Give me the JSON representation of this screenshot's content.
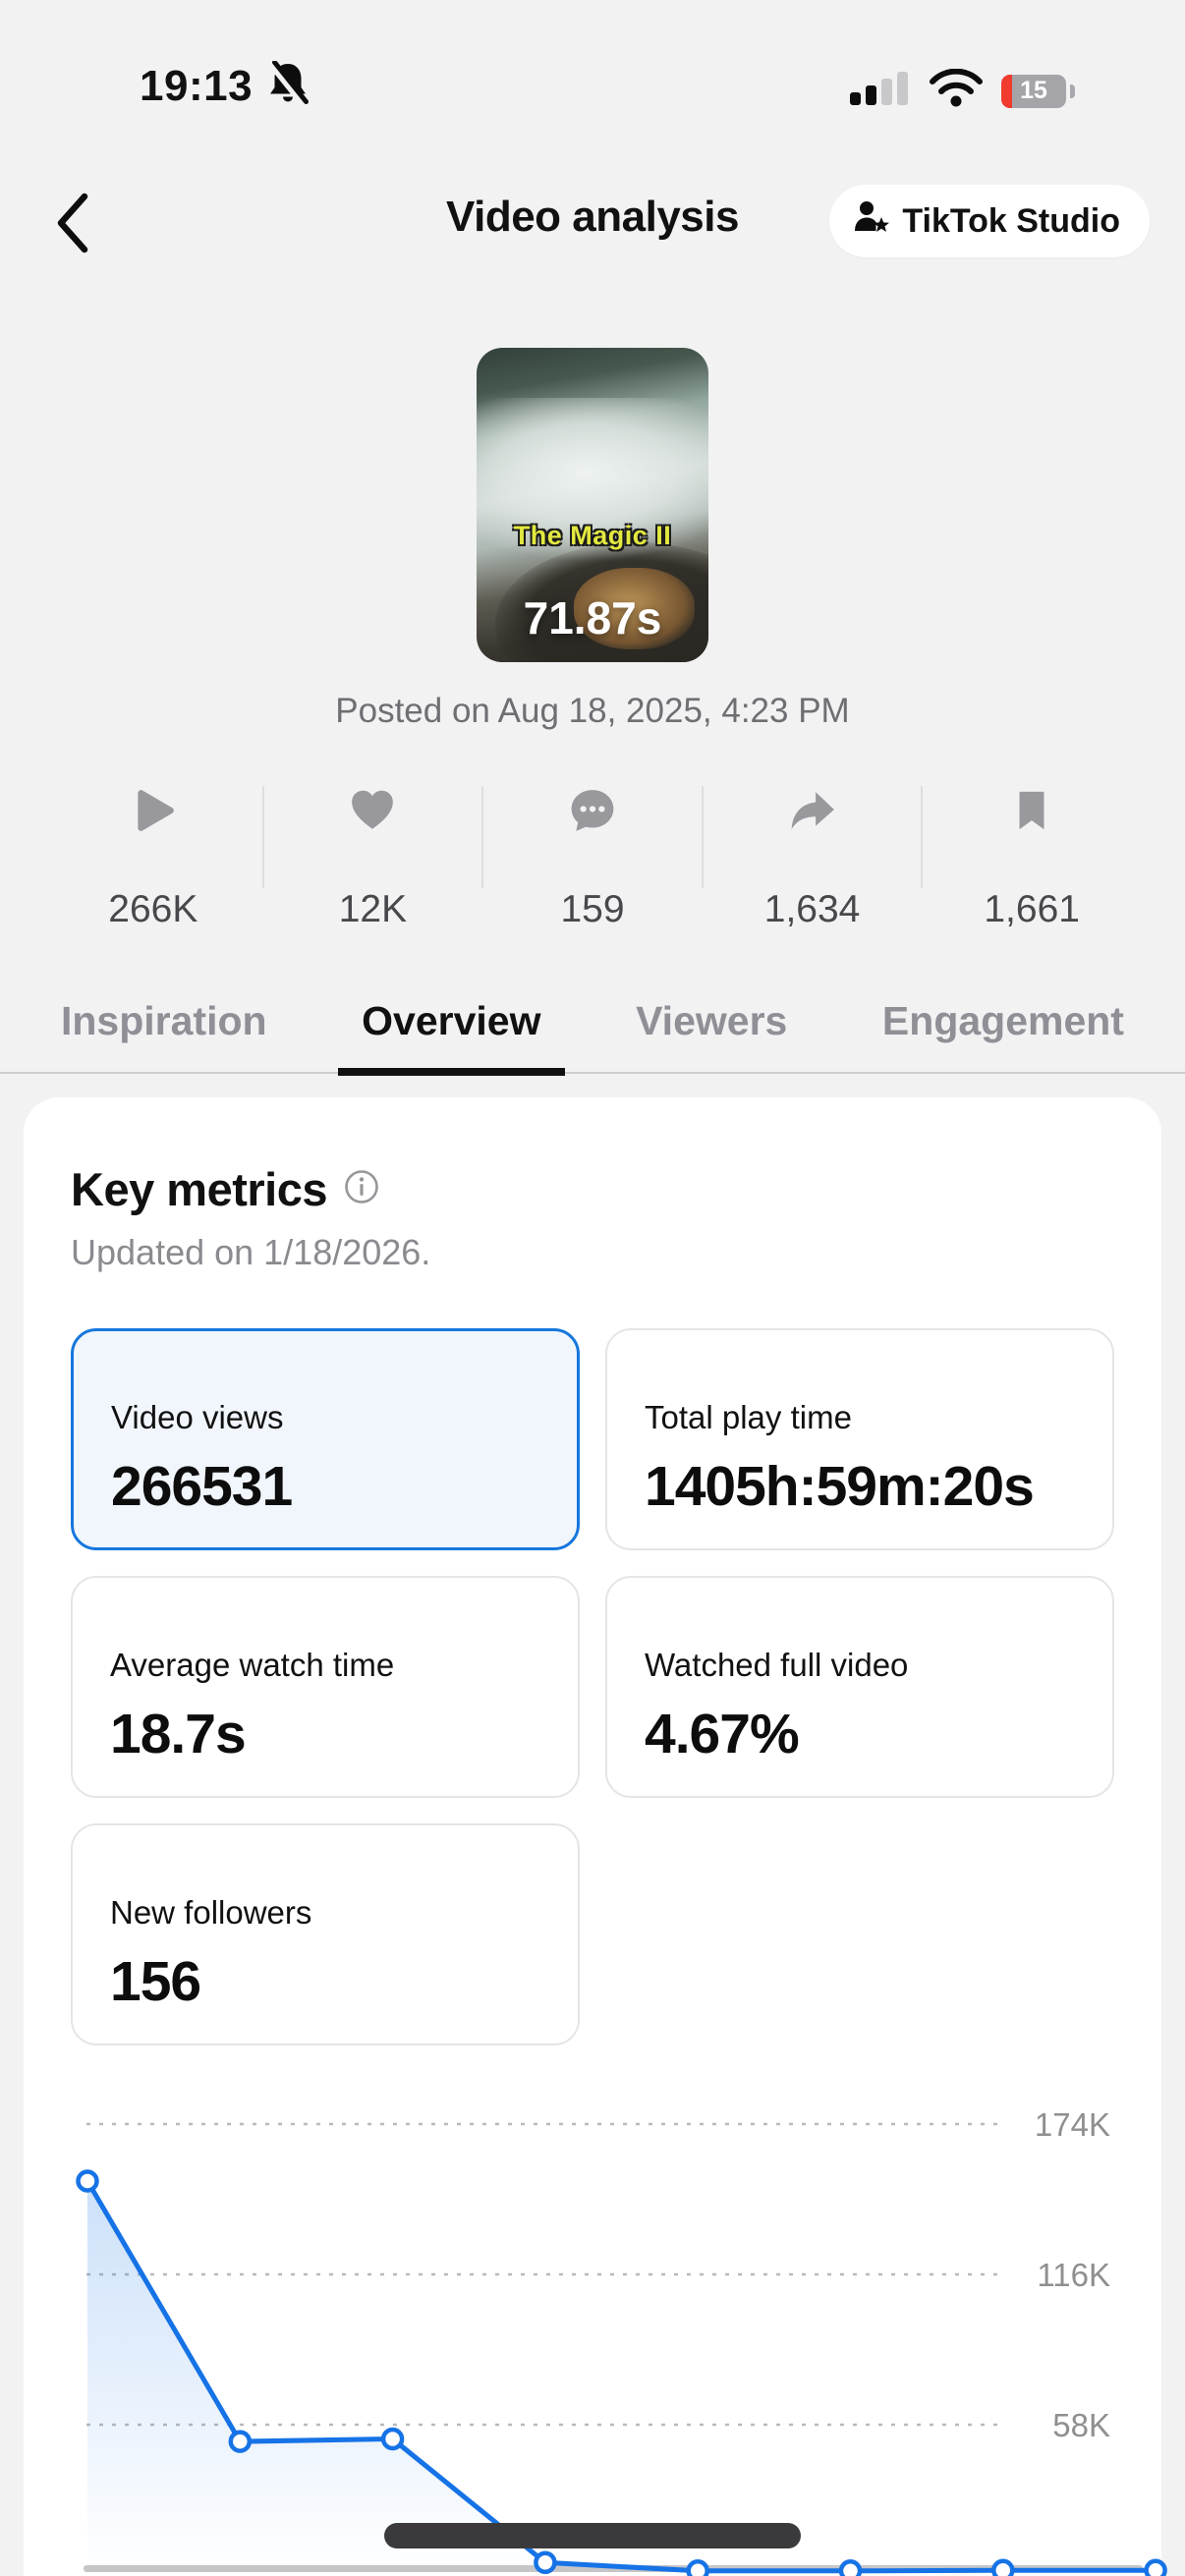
{
  "status_bar": {
    "time": "19:13",
    "battery_level": "15"
  },
  "header": {
    "title": "Video analysis",
    "studio_button_label": "TikTok Studio"
  },
  "video": {
    "overlay_caption": "The Magic II",
    "duration_label": "71.87s",
    "posted_text": "Posted on Aug 18, 2025, 4:23 PM"
  },
  "stats": [
    {
      "icon": "play",
      "value": "266K"
    },
    {
      "icon": "heart",
      "value": "12K"
    },
    {
      "icon": "comment",
      "value": "159"
    },
    {
      "icon": "share",
      "value": "1,634"
    },
    {
      "icon": "bookmark",
      "value": "1,661"
    }
  ],
  "tabs": [
    {
      "label": "Inspiration",
      "active": false
    },
    {
      "label": "Overview",
      "active": true
    },
    {
      "label": "Viewers",
      "active": false
    },
    {
      "label": "Engagement",
      "active": false
    }
  ],
  "key_metrics": {
    "title": "Key metrics",
    "updated": "Updated on 1/18/2026.",
    "cards": [
      {
        "label": "Video views",
        "value": "266531",
        "selected": true
      },
      {
        "label": "Total play time",
        "value": "1405h:59m:20s",
        "selected": false
      },
      {
        "label": "Average watch time",
        "value": "18.7s",
        "selected": false
      },
      {
        "label": "Watched full video",
        "value": "4.67%",
        "selected": false
      },
      {
        "label": "New followers",
        "value": "156",
        "selected": false
      }
    ]
  },
  "chart_data": {
    "type": "line",
    "title": "",
    "x": [
      1,
      2,
      3,
      4,
      5,
      6,
      7,
      8
    ],
    "x_labels": [],
    "series": [
      {
        "name": "Video views",
        "values": [
          152000,
          51500,
          52500,
          4800,
          1600,
          1600,
          1800,
          1800
        ]
      }
    ],
    "yticks": [
      "174K",
      "116K",
      "58K"
    ],
    "ytick_values": [
      174000,
      116000,
      58000
    ],
    "ylim": [
      0,
      185000
    ],
    "grid": "dotted-horizontal",
    "legend": "none",
    "markers": true,
    "area_fill": true,
    "line_color": "#1673e6",
    "tick_label_color": "#8f8f92"
  }
}
